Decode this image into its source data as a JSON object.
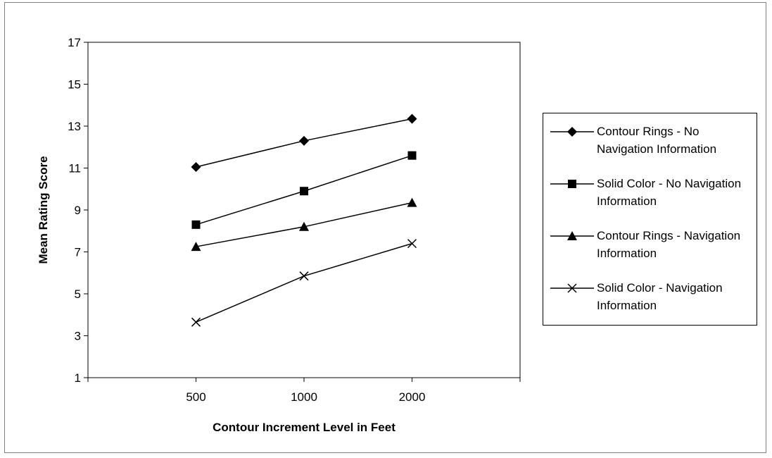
{
  "chart_data": {
    "type": "line",
    "title": "",
    "xlabel": "Contour Increment Level in Feet",
    "ylabel": "Mean Rating Score",
    "categories": [
      "500",
      "1000",
      "2000"
    ],
    "ylim": [
      1,
      17
    ],
    "yticks": [
      "1",
      "3",
      "5",
      "7",
      "9",
      "11",
      "13",
      "15",
      "17"
    ],
    "grid": false,
    "legend_position": "right",
    "series": [
      {
        "name": "Contour Rings - No Navigation Information",
        "marker": "diamond",
        "values": [
          11.05,
          12.3,
          13.35
        ]
      },
      {
        "name": "Solid Color - No Navigation Information",
        "marker": "square",
        "values": [
          8.3,
          9.9,
          11.6
        ]
      },
      {
        "name": "Contour Rings - Navigation Information",
        "marker": "triangle",
        "values": [
          7.25,
          8.2,
          9.35
        ]
      },
      {
        "name": "Solid Color - Navigation Information",
        "marker": "x",
        "values": [
          3.65,
          5.85,
          7.4
        ]
      }
    ]
  }
}
